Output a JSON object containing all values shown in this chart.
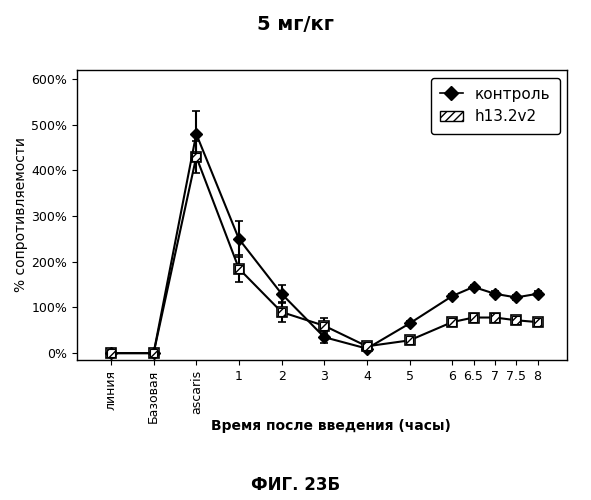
{
  "title": "5 мг/кг",
  "footer": "ФИГ. 23Б",
  "xlabel": "Время после введения (часы)",
  "ylabel": "% сопротивляемости",
  "ylim": [
    -15,
    620
  ],
  "yticks": [
    0,
    100,
    200,
    300,
    400,
    500,
    600
  ],
  "ytick_labels": [
    "0%",
    "100%",
    "200%",
    "300%",
    "400%",
    "500%",
    "600%"
  ],
  "x_positions": [
    -2,
    -1,
    0,
    1,
    2,
    3,
    4,
    5,
    6,
    6.5,
    7,
    7.5,
    8
  ],
  "x_tick_labels": [
    "линия",
    "Базовая",
    "ascaris",
    "1",
    "2",
    "3",
    "4",
    "5",
    "6",
    "6.5",
    "7",
    "7.5",
    "8"
  ],
  "control_y": [
    0,
    0,
    480,
    250,
    130,
    35,
    10,
    65,
    125,
    145,
    130,
    122,
    130
  ],
  "control_yerr": [
    3,
    3,
    50,
    40,
    20,
    12,
    5,
    5,
    5,
    5,
    5,
    5,
    5
  ],
  "h13_y": [
    0,
    0,
    430,
    185,
    90,
    60,
    15,
    28,
    68,
    78,
    78,
    72,
    68
  ],
  "h13_yerr": [
    3,
    3,
    35,
    30,
    22,
    18,
    5,
    5,
    5,
    5,
    5,
    5,
    5
  ],
  "control_color": "#000000",
  "h13_color": "#000000",
  "legend_labels": [
    "контроль",
    "h13.2v2"
  ],
  "background_color": "#ffffff",
  "plot_bg": "#ffffff",
  "title_fontsize": 14,
  "label_fontsize": 10,
  "tick_fontsize": 9,
  "footer_fontsize": 12
}
